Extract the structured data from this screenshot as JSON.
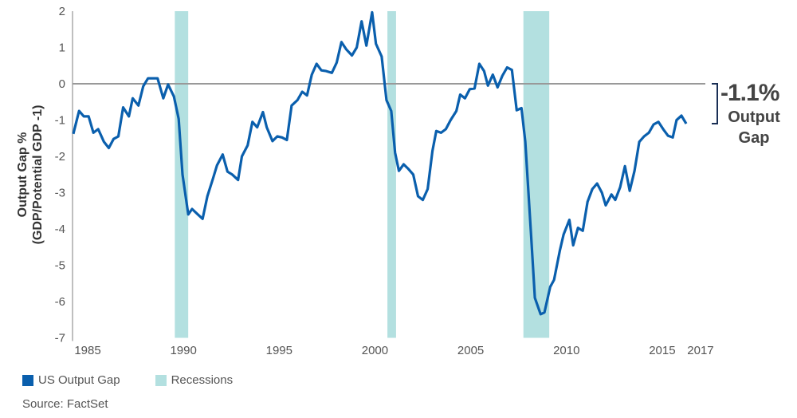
{
  "chart_data": {
    "type": "line",
    "title": "",
    "ylabel": "Output Gap % (GDP/Potential GDP -1)",
    "ylabel_lines": [
      "Output Gap %",
      "(GDP/Potential GDP -1)"
    ],
    "xlabel": "",
    "ylim": [
      -7,
      2
    ],
    "xlim": [
      1985,
      2017
    ],
    "yticks": [
      2,
      1,
      0,
      -1,
      -2,
      -3,
      -4,
      -5,
      -6,
      -7
    ],
    "xticks": [
      1985,
      1990,
      1995,
      2000,
      2005,
      2010,
      2015,
      2017
    ],
    "grid": false,
    "legend_position": "bottom-left",
    "series": [
      {
        "name": "US Output Gap",
        "color": "#0a5fad",
        "points": [
          [
            1985.0,
            -1.38
          ],
          [
            1985.3,
            -0.75
          ],
          [
            1985.55,
            -0.9
          ],
          [
            1985.8,
            -0.9
          ],
          [
            1986.05,
            -1.35
          ],
          [
            1986.3,
            -1.25
          ],
          [
            1986.6,
            -1.6
          ],
          [
            1986.85,
            -1.77
          ],
          [
            1987.1,
            -1.52
          ],
          [
            1987.35,
            -1.45
          ],
          [
            1987.6,
            -0.65
          ],
          [
            1987.9,
            -0.9
          ],
          [
            1988.1,
            -0.4
          ],
          [
            1988.4,
            -0.6
          ],
          [
            1988.65,
            -0.07
          ],
          [
            1988.9,
            0.15
          ],
          [
            1989.4,
            0.15
          ],
          [
            1989.7,
            -0.4
          ],
          [
            1989.95,
            -0.02
          ],
          [
            1990.25,
            -0.35
          ],
          [
            1990.5,
            -0.97
          ],
          [
            1990.7,
            -2.5
          ],
          [
            1991.0,
            -3.6
          ],
          [
            1991.2,
            -3.45
          ],
          [
            1991.5,
            -3.6
          ],
          [
            1991.75,
            -3.72
          ],
          [
            1992.0,
            -3.1
          ],
          [
            1992.3,
            -2.6
          ],
          [
            1992.5,
            -2.25
          ],
          [
            1992.8,
            -1.95
          ],
          [
            1993.05,
            -2.42
          ],
          [
            1993.3,
            -2.5
          ],
          [
            1993.6,
            -2.65
          ],
          [
            1993.8,
            -2.0
          ],
          [
            1994.1,
            -1.7
          ],
          [
            1994.35,
            -1.05
          ],
          [
            1994.6,
            -1.2
          ],
          [
            1994.9,
            -0.78
          ],
          [
            1995.1,
            -1.2
          ],
          [
            1995.4,
            -1.58
          ],
          [
            1995.65,
            -1.45
          ],
          [
            1995.9,
            -1.48
          ],
          [
            1996.15,
            -1.55
          ],
          [
            1996.4,
            -0.6
          ],
          [
            1996.7,
            -0.45
          ],
          [
            1996.95,
            -0.22
          ],
          [
            1997.2,
            -0.32
          ],
          [
            1997.45,
            0.25
          ],
          [
            1997.7,
            0.55
          ],
          [
            1997.95,
            0.37
          ],
          [
            1998.2,
            0.35
          ],
          [
            1998.5,
            0.3
          ],
          [
            1998.75,
            0.58
          ],
          [
            1999.0,
            1.15
          ],
          [
            1999.25,
            0.95
          ],
          [
            1999.55,
            0.78
          ],
          [
            1999.8,
            1.0
          ],
          [
            2000.05,
            1.72
          ],
          [
            2000.3,
            1.05
          ],
          [
            2000.6,
            1.97
          ],
          [
            2000.8,
            1.1
          ],
          [
            2001.1,
            0.75
          ],
          [
            2001.35,
            -0.45
          ],
          [
            2001.6,
            -0.75
          ],
          [
            2001.8,
            -1.9
          ],
          [
            2002.0,
            -2.4
          ],
          [
            2002.25,
            -2.22
          ],
          [
            2002.5,
            -2.35
          ],
          [
            2002.75,
            -2.5
          ],
          [
            2003.0,
            -3.1
          ],
          [
            2003.25,
            -3.2
          ],
          [
            2003.5,
            -2.9
          ],
          [
            2003.75,
            -1.85
          ],
          [
            2003.95,
            -1.3
          ],
          [
            2004.2,
            -1.35
          ],
          [
            2004.45,
            -1.25
          ],
          [
            2004.7,
            -1.0
          ],
          [
            2005.0,
            -0.75
          ],
          [
            2005.2,
            -0.3
          ],
          [
            2005.45,
            -0.4
          ],
          [
            2005.7,
            -0.15
          ],
          [
            2005.95,
            -0.13
          ],
          [
            2006.2,
            0.55
          ],
          [
            2006.45,
            0.35
          ],
          [
            2006.65,
            -0.05
          ],
          [
            2006.9,
            0.25
          ],
          [
            2007.15,
            -0.1
          ],
          [
            2007.4,
            0.22
          ],
          [
            2007.65,
            0.45
          ],
          [
            2007.9,
            0.38
          ],
          [
            2008.15,
            -0.73
          ],
          [
            2008.4,
            -0.67
          ],
          [
            2008.6,
            -1.6
          ],
          [
            2008.9,
            -4.15
          ],
          [
            2009.1,
            -5.9
          ],
          [
            2009.4,
            -6.35
          ],
          [
            2009.6,
            -6.3
          ],
          [
            2009.9,
            -5.6
          ],
          [
            2010.1,
            -5.4
          ],
          [
            2010.4,
            -4.6
          ],
          [
            2010.6,
            -4.15
          ],
          [
            2010.9,
            -3.75
          ],
          [
            2011.1,
            -4.45
          ],
          [
            2011.35,
            -3.97
          ],
          [
            2011.6,
            -4.05
          ],
          [
            2011.85,
            -3.25
          ],
          [
            2012.1,
            -2.9
          ],
          [
            2012.35,
            -2.75
          ],
          [
            2012.6,
            -3.0
          ],
          [
            2012.8,
            -3.35
          ],
          [
            2013.1,
            -3.05
          ],
          [
            2013.3,
            -3.2
          ],
          [
            2013.55,
            -2.85
          ],
          [
            2013.8,
            -2.27
          ],
          [
            2014.05,
            -2.95
          ],
          [
            2014.3,
            -2.4
          ],
          [
            2014.55,
            -1.6
          ],
          [
            2014.8,
            -1.45
          ],
          [
            2015.05,
            -1.35
          ],
          [
            2015.3,
            -1.12
          ],
          [
            2015.55,
            -1.05
          ],
          [
            2015.8,
            -1.25
          ],
          [
            2016.05,
            -1.43
          ],
          [
            2016.3,
            -1.48
          ],
          [
            2016.5,
            -1.0
          ],
          [
            2016.75,
            -0.88
          ],
          [
            2017.0,
            -1.1
          ]
        ]
      }
    ],
    "recessions": {
      "name": "Recessions",
      "color": "#b3e0e0",
      "ranges": [
        [
          1990.3,
          1991.0
        ],
        [
          2001.4,
          2001.85
        ],
        [
          2008.5,
          2009.85
        ]
      ]
    },
    "annotation": {
      "value": "-1.1%",
      "label_lines": [
        "Output",
        "Gap"
      ],
      "bracket_range": [
        0,
        -1.1
      ],
      "bracket_color": "#1a2f55"
    },
    "zero_line_color": "#999999",
    "source": "Source: FactSet"
  }
}
